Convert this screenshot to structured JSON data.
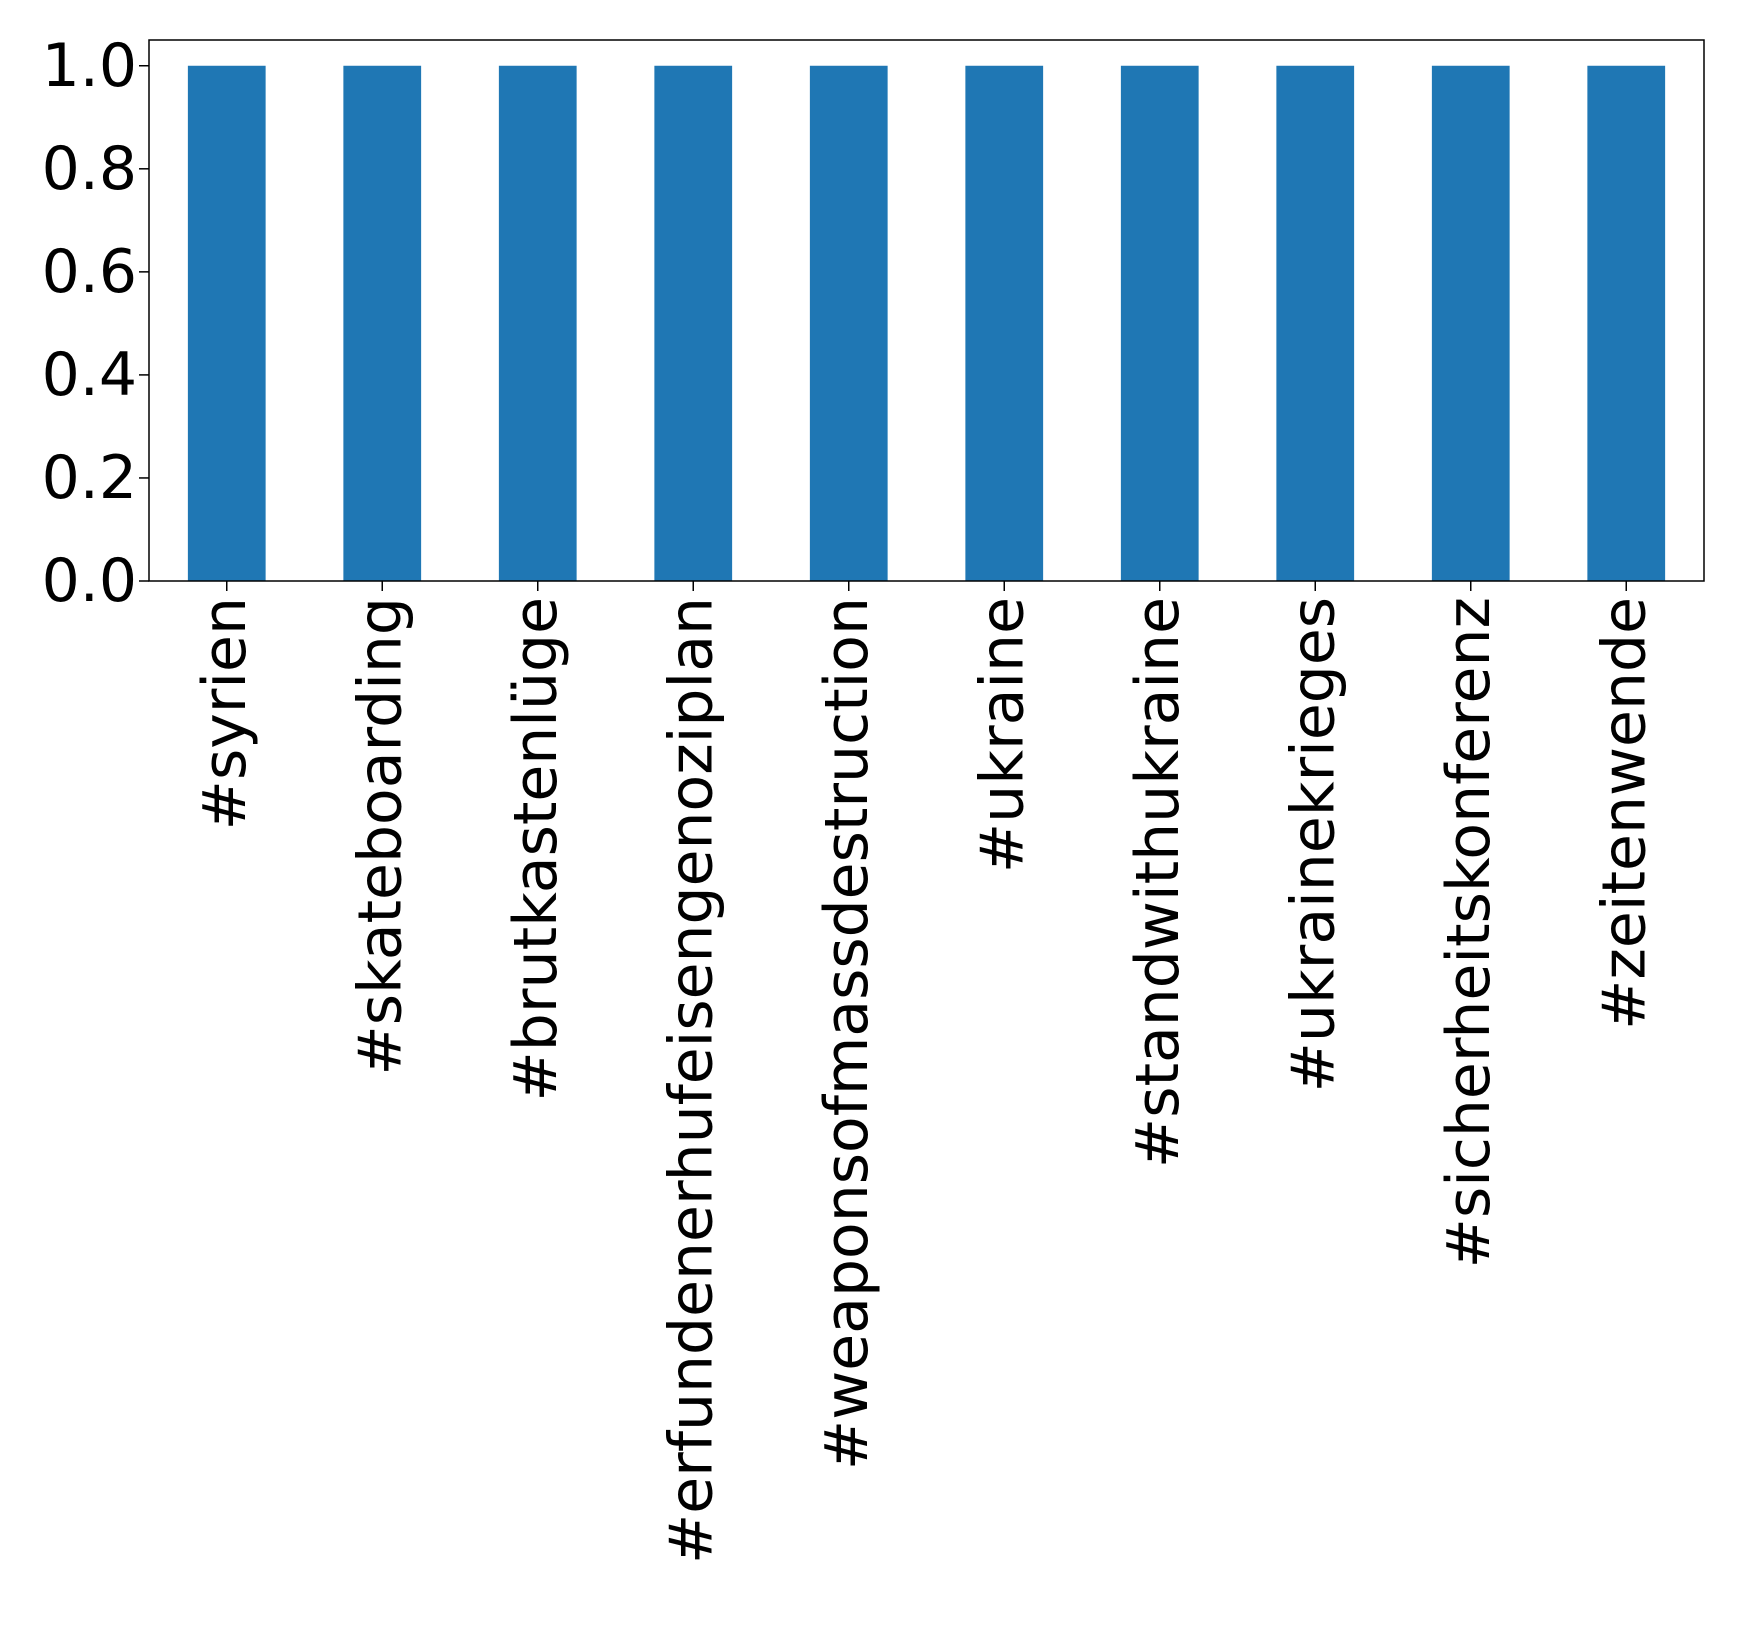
{
  "chart_data": {
    "type": "bar",
    "categories": [
      "#syrien",
      "#skateboarding",
      "#brutkastenlüge",
      "#erfundenerhufeisengenoziplan",
      "#weaponsofmassdestruction",
      "#ukraine",
      "#standwithukraine",
      "#ukrainekrieges",
      "#sicherheitskonferenz",
      "#zeitenwende"
    ],
    "values": [
      1.0,
      1.0,
      1.0,
      1.0,
      1.0,
      1.0,
      1.0,
      1.0,
      1.0,
      1.0
    ],
    "title": "",
    "xlabel": "",
    "ylabel": "",
    "ylim": [
      0.0,
      1.05
    ],
    "yticks": [
      "0.0",
      "0.2",
      "0.4",
      "0.6",
      "0.8",
      "1.0"
    ],
    "grid": false,
    "bar_color": "#1f77b4"
  }
}
